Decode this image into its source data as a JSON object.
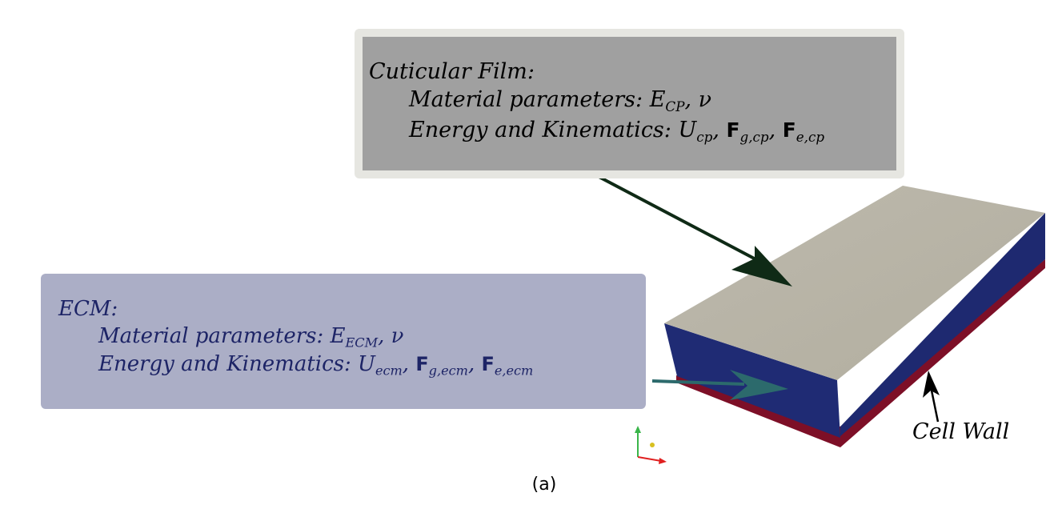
{
  "cuticular_film": {
    "title": "Cuticular Film",
    "colon": ":",
    "material_label": "Material parameters",
    "material_symbol_base": "E",
    "material_symbol_sub": "CP",
    "material_nu": "ν",
    "energy_label": "Energy and Kinematics",
    "energy_U": "U",
    "energy_U_sub": "cp",
    "energy_F": "F",
    "energy_Fg_sub": "g,cp",
    "energy_Fe_sub": "e,cp"
  },
  "ecm": {
    "title": "ECM",
    "colon": ":",
    "material_label": "Material parameters",
    "material_symbol_base": "E",
    "material_symbol_sub": "ECM",
    "material_nu": "ν",
    "energy_label": "Energy and Kinematics",
    "energy_U": "U",
    "energy_U_sub": "ecm",
    "energy_F": "F",
    "energy_Fg_sub": "g,ecm",
    "energy_Fe_sub": "e,ecm"
  },
  "cell_wall_label": "Cell Wall",
  "caption": "(a)",
  "colors": {
    "top_face": "#b7b3a7",
    "ecm_layer": "#1f2a6e",
    "cell_wall_layer": "#7d0f27",
    "cp_arrow": "#0f2a16",
    "ecm_arrow": "#2c6a6c"
  }
}
